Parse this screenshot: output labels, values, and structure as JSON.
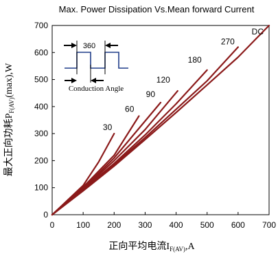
{
  "chart_data": {
    "type": "line",
    "title": "Max. Power Dissipation Vs.Mean forward Current",
    "xlabel": {
      "prefix": "正向平均电流I",
      "sub": "F(AV)",
      "suffix": ",A"
    },
    "ylabel": {
      "prefix": "最大正向功耗P",
      "sub": "F(AV)",
      "suffix": "(max),W"
    },
    "xlim": [
      0,
      700
    ],
    "ylim": [
      0,
      700
    ],
    "xticks": [
      0,
      100,
      200,
      300,
      400,
      500,
      600,
      700
    ],
    "yticks": [
      0,
      100,
      200,
      300,
      400,
      500,
      600,
      700
    ],
    "grid": false,
    "line_color": "#8b1a1a",
    "series": [
      {
        "name": "30",
        "x": [
          0,
          100,
          150,
          200
        ],
        "y": [
          0,
          108,
          195,
          300
        ]
      },
      {
        "name": "60",
        "x": [
          0,
          100,
          200,
          280
        ],
        "y": [
          0,
          102,
          220,
          365
        ]
      },
      {
        "name": "90",
        "x": [
          0,
          100,
          200,
          350
        ],
        "y": [
          0,
          97,
          210,
          415
        ]
      },
      {
        "name": "120",
        "x": [
          0,
          100,
          200,
          300,
          405
        ],
        "y": [
          0,
          95,
          200,
          315,
          458
        ]
      },
      {
        "name": "180",
        "x": [
          0,
          100,
          200,
          300,
          400,
          500
        ],
        "y": [
          0,
          92,
          190,
          295,
          410,
          535
        ]
      },
      {
        "name": "270",
        "x": [
          0,
          100,
          200,
          300,
          400,
          500,
          600
        ],
        "y": [
          0,
          90,
          185,
          285,
          390,
          495,
          620
        ]
      },
      {
        "name": "DC",
        "x": [
          0,
          100,
          200,
          300,
          400,
          500,
          600,
          700
        ],
        "y": [
          0,
          88,
          180,
          278,
          378,
          480,
          583,
          700
        ]
      }
    ],
    "inset": {
      "label": "360",
      "caption": "Conduction Angle"
    }
  }
}
